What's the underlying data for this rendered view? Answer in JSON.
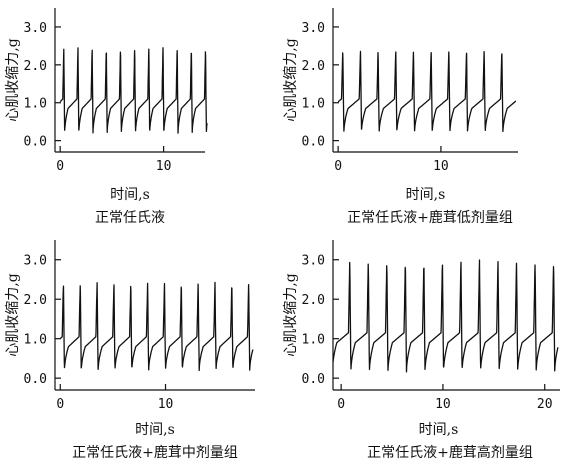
{
  "chart_data": [
    {
      "type": "line",
      "caption": "正常任氏液",
      "xlabel": "时间,s",
      "ylabel": "心肌收缩力,g",
      "xlim": [
        -0.5,
        14
      ],
      "ylim": [
        -0.3,
        3.5
      ],
      "xticks": [
        0,
        10
      ],
      "yticks": [
        0.0,
        1.0,
        2.0,
        3.0
      ],
      "ytick_labels": [
        "0.0",
        "1.0",
        "2.0",
        "3.0"
      ],
      "series": [
        {
          "start": 0.0,
          "end": 14.2,
          "period": 1.37,
          "first_peak": 0.35,
          "peak": 2.45,
          "trough": 0.18,
          "plateau": 0.85
        }
      ]
    },
    {
      "type": "line",
      "caption": "正常任氏液+鹿茸低剂量组",
      "xlabel": "时间,s",
      "ylabel": "心肌收缩力,g",
      "xlim": [
        -0.5,
        17.5
      ],
      "ylim": [
        -0.3,
        3.5
      ],
      "xticks": [
        0,
        10
      ],
      "yticks": [
        0.0,
        1.0,
        2.0,
        3.0
      ],
      "ytick_labels": [
        "0.0",
        "1.0",
        "2.0",
        "3.0"
      ],
      "series": [
        {
          "start": 0.0,
          "end": 17.3,
          "period": 1.72,
          "first_peak": 0.45,
          "peak": 2.4,
          "trough": 0.2,
          "plateau": 0.85
        }
      ]
    },
    {
      "type": "line",
      "caption": "正常任氏液+鹿茸中剂量组",
      "xlabel": "时间,s",
      "ylabel": "心肌收缩力,g",
      "xlim": [
        -0.5,
        18.5
      ],
      "ylim": [
        -0.3,
        3.5
      ],
      "xticks": [
        0,
        10
      ],
      "yticks": [
        0.0,
        1.0,
        2.0,
        3.0
      ],
      "ytick_labels": [
        "0.0",
        "1.0",
        "2.0",
        "3.0"
      ],
      "series": [
        {
          "start": 0.0,
          "end": 18.3,
          "period": 1.6,
          "first_peak": 0.3,
          "peak": 2.45,
          "trough": 0.18,
          "plateau": 0.8
        }
      ]
    },
    {
      "type": "line",
      "caption": "正常任氏液+鹿茸高剂量组",
      "xlabel": "时间,s",
      "ylabel": "心肌收缩力,g",
      "xlim": [
        -0.8,
        21.5
      ],
      "ylim": [
        -0.3,
        3.5
      ],
      "xticks": [
        0,
        10,
        20
      ],
      "yticks": [
        0.0,
        1.0,
        2.0,
        3.0
      ],
      "ytick_labels": [
        "0.0",
        "1.0",
        "2.0",
        "3.0"
      ],
      "series": [
        {
          "start": -0.8,
          "end": 21.3,
          "period": 1.82,
          "first_peak": 0.85,
          "peak": 3.0,
          "trough": 0.15,
          "plateau": 0.9
        }
      ]
    }
  ]
}
